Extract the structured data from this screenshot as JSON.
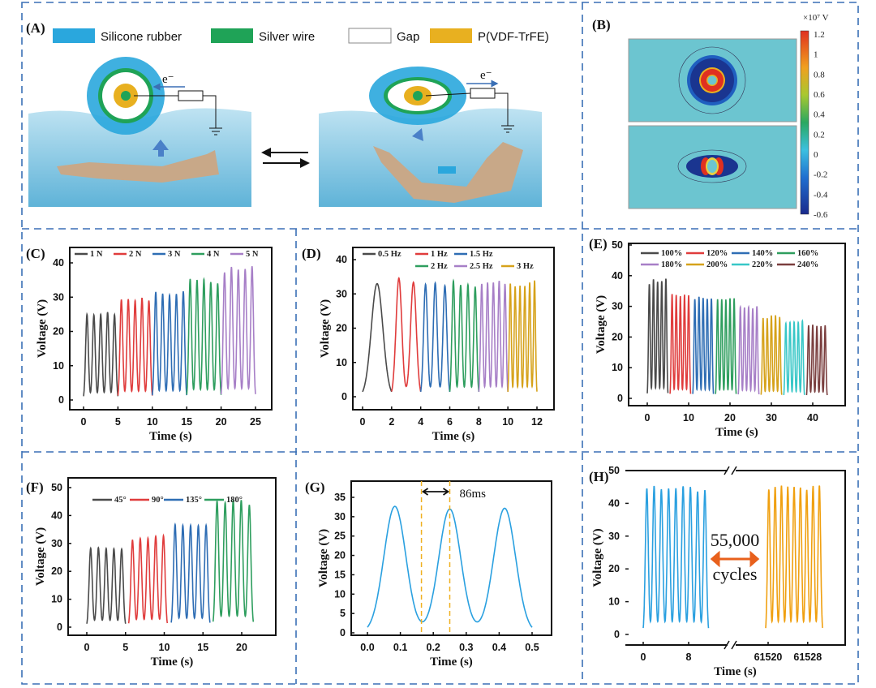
{
  "panels": {
    "A": {
      "label": "(A)",
      "legend": [
        {
          "name": "Silicone rubber",
          "color": "#2aa7dd"
        },
        {
          "name": "Silver wire",
          "color": "#1fa357"
        },
        {
          "name": "Gap",
          "color": "#ffffff"
        },
        {
          "name": "P(VDF-TrFE)",
          "color": "#e8b020"
        }
      ],
      "electron_label": "e⁻"
    },
    "B": {
      "label": "(B)",
      "colorbar_unit": "×10⁷ V",
      "colorbar_ticks": [
        "1.2",
        "1",
        "0.8",
        "0.6",
        "0.4",
        "0.2",
        "0",
        "-0.2",
        "-0.4",
        "-0.6"
      ],
      "background_color": "#6cc5d0"
    }
  },
  "chart_data": [
    {
      "label": "(C)",
      "type": "line",
      "xlabel": "Time (s)",
      "ylabel": "Voltage (V)",
      "xlim": [
        -3,
        27
      ],
      "ylim": [
        -4,
        44
      ],
      "xticks": [
        "0",
        "5",
        "10",
        "15",
        "20",
        "25"
      ],
      "yticks": [
        "0",
        "10",
        "20",
        "30",
        "40"
      ],
      "series": [
        {
          "name": "1 N",
          "color": "#4a4a4a",
          "t_range": [
            0,
            5
          ],
          "peaks": [
            25,
            24.8,
            25,
            25.6,
            24.9
          ]
        },
        {
          "name": "2 N",
          "color": "#e03c3c",
          "t_range": [
            5,
            10
          ],
          "peaks": [
            29.3,
            29.4,
            29,
            29.8,
            29
          ]
        },
        {
          "name": "3 N",
          "color": "#2e6db4",
          "t_range": [
            10,
            15
          ],
          "peaks": [
            31.5,
            31,
            30.6,
            30.9,
            31.7
          ]
        },
        {
          "name": "4 N",
          "color": "#2e9e5e",
          "t_range": [
            15,
            20
          ],
          "peaks": [
            35.3,
            35,
            35.2,
            34.4,
            34
          ]
        },
        {
          "name": "5 N",
          "color": "#a77fc7",
          "t_range": [
            20,
            25
          ],
          "peaks": [
            37.2,
            38.8,
            38,
            38.2,
            39
          ]
        }
      ]
    },
    {
      "label": "(D)",
      "type": "line",
      "xlabel": "Time (s)",
      "ylabel": "Voltage (V)",
      "xlim": [
        -0.5,
        12.5
      ],
      "ylim": [
        -4,
        44
      ],
      "xticks": [
        "0",
        "2",
        "4",
        "6",
        "8",
        "10",
        "12"
      ],
      "yticks": [
        "0",
        "10",
        "20",
        "30",
        "40"
      ],
      "series": [
        {
          "name": "0.5 Hz",
          "color": "#4a4a4a",
          "t_range": [
            0,
            2
          ],
          "peaks": [
            33
          ]
        },
        {
          "name": "1 Hz",
          "color": "#e03c3c",
          "t_range": [
            2,
            4
          ],
          "peaks": [
            34.6,
            33.4
          ]
        },
        {
          "name": "1.5 Hz",
          "color": "#2e6db4",
          "t_range": [
            4,
            6
          ],
          "peaks": [
            32.8,
            33.2,
            32.4
          ]
        },
        {
          "name": "2 Hz",
          "color": "#2e9e5e",
          "t_range": [
            6,
            8
          ],
          "peaks": [
            33.8,
            32.6,
            32.7,
            32.1
          ]
        },
        {
          "name": "2.5 Hz",
          "color": "#a77fc7",
          "t_range": [
            8,
            10
          ],
          "peaks": [
            32.9,
            33.3,
            33.3,
            33.8,
            32.9
          ]
        },
        {
          "name": "3 Hz",
          "color": "#d6a21a",
          "t_range": [
            10,
            12
          ],
          "peaks": [
            33,
            32.2,
            32.4,
            32.3,
            33.3,
            33.9
          ]
        }
      ]
    },
    {
      "label": "(E)",
      "type": "line",
      "xlabel": "Time (s)",
      "ylabel": "Voltage (V)",
      "xlim": [
        -4,
        45
      ],
      "ylim": [
        -5,
        50
      ],
      "xticks": [
        "0",
        "10",
        "20",
        "30",
        "40"
      ],
      "yticks": [
        "0",
        "10",
        "20",
        "30",
        "40",
        "50"
      ],
      "series": [
        {
          "name": "100%",
          "color": "#4a4a4a",
          "t_range": [
            0,
            5
          ],
          "peaks": [
            37.2,
            38.8,
            38,
            38.2,
            39
          ]
        },
        {
          "name": "120%",
          "color": "#e03c3c",
          "t_range": [
            5.5,
            10.5
          ],
          "peaks": [
            34,
            33.7,
            33.3,
            33.8,
            33.6
          ]
        },
        {
          "name": "140%",
          "color": "#2e6db4",
          "t_range": [
            11,
            16
          ],
          "peaks": [
            32.3,
            33.1,
            32.7,
            32.4,
            32.5
          ]
        },
        {
          "name": "160%",
          "color": "#2e9e5e",
          "t_range": [
            16.5,
            21.5
          ],
          "peaks": [
            32.3,
            32.3,
            32.2,
            32.6,
            32.6
          ]
        },
        {
          "name": "180%",
          "color": "#a77fc7",
          "t_range": [
            22,
            27
          ],
          "peaks": [
            29.8,
            29.6,
            29.8,
            29.3,
            30
          ]
        },
        {
          "name": "200%",
          "color": "#d6a21a",
          "t_range": [
            27.5,
            32.5
          ],
          "peaks": [
            26.2,
            26.1,
            27,
            27.1,
            26.5
          ]
        },
        {
          "name": "220%",
          "color": "#38c7c7",
          "t_range": [
            33,
            38
          ],
          "peaks": [
            24.5,
            24.8,
            24.9,
            24.8,
            25.3
          ]
        },
        {
          "name": "240%",
          "color": "#7a3e3e",
          "t_range": [
            38.5,
            43.5
          ],
          "peaks": [
            23.8,
            24,
            23.6,
            23.5,
            23.8
          ]
        }
      ]
    },
    {
      "label": "(F)",
      "type": "line",
      "xlabel": "Time (s)",
      "ylabel": "Voltage (V)",
      "xlim": [
        -2.5,
        24
      ],
      "ylim": [
        -5,
        54
      ],
      "xticks": [
        "0",
        "5",
        "10",
        "15",
        "20"
      ],
      "yticks": [
        "0",
        "10",
        "20",
        "30",
        "40",
        "50"
      ],
      "series": [
        {
          "name": "45°",
          "color": "#4a4a4a",
          "t_range": [
            0,
            5
          ],
          "peaks": [
            28.3,
            28.5,
            28.2,
            28.1,
            28
          ]
        },
        {
          "name": "90°",
          "color": "#e03c3c",
          "t_range": [
            5.4,
            10.4
          ],
          "peaks": [
            31.3,
            31.8,
            31.9,
            32.6,
            32.8
          ]
        },
        {
          "name": "135°",
          "color": "#2e6db4",
          "t_range": [
            10.9,
            15.9
          ],
          "peaks": [
            36.8,
            36.5,
            36.5,
            36.4,
            36.5
          ]
        },
        {
          "name": "180°",
          "color": "#2e9e5e",
          "t_range": [
            16.3,
            21.5
          ],
          "peaks": [
            45.2,
            44.6,
            45.5,
            45.5,
            43.8
          ]
        }
      ]
    },
    {
      "label": "(G)",
      "type": "line",
      "xlabel": "Time (s)",
      "ylabel": "Voltage (V)",
      "xlim": [
        -0.05,
        0.55
      ],
      "ylim": [
        -2,
        37
      ],
      "xticks": [
        "0.0",
        "0.1",
        "0.2",
        "0.3",
        "0.4",
        "0.5"
      ],
      "yticks": [
        "0",
        "5",
        "10",
        "15",
        "20",
        "25",
        "30",
        "35"
      ],
      "series": [
        {
          "color": "#2aa0e0",
          "t_range": [
            0,
            0.5
          ],
          "peaks": [
            32.7,
            32,
            32.2
          ]
        }
      ],
      "annotation": {
        "text": "86ms",
        "markers_x": [
          0.164,
          0.25
        ],
        "marker_color": "#f0b020"
      }
    },
    {
      "label": "(H)",
      "type": "line",
      "xlabel": "Time (s)",
      "ylabel": "Voltage (V)",
      "ylim": [
        -3,
        50
      ],
      "x_axis_break": true,
      "xticks": [
        "0",
        "8",
        "61520",
        "61528"
      ],
      "yticks": [
        "0",
        "10",
        "20",
        "30",
        "40",
        "50"
      ],
      "series": [
        {
          "color": "#2aa0e0",
          "t_range": [
            0,
            11.5
          ],
          "peaks": [
            44.5,
            45.3,
            44.3,
            44.5,
            44.6,
            45.2,
            45,
            43.6,
            44
          ]
        },
        {
          "color": "#f0a010",
          "t_range": [
            61519.5,
            61531
          ],
          "peaks": [
            44.2,
            45,
            45.4,
            45.1,
            45,
            44.8,
            44.1,
            45.3,
            45.4
          ]
        }
      ],
      "annotation": {
        "text_top": "55,000",
        "text_bottom": "cycles",
        "arrow_color": "#e8601c"
      }
    }
  ]
}
